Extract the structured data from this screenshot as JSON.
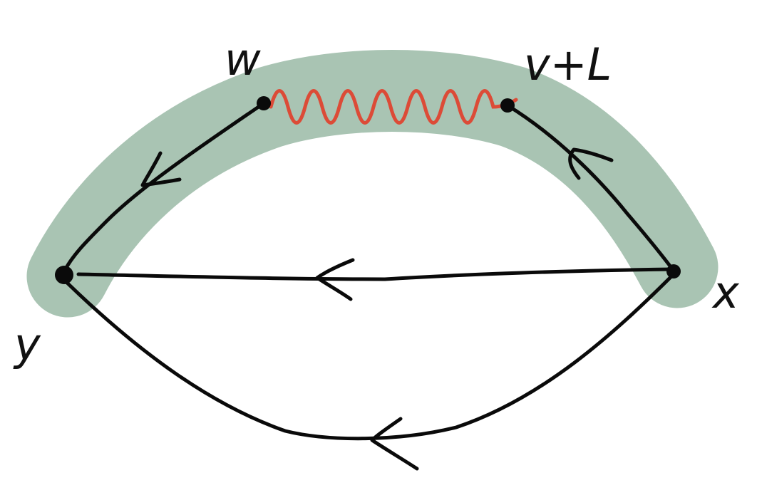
{
  "nodes": [
    {
      "label": "w"
    },
    {
      "label": "v+L"
    },
    {
      "label": "x"
    },
    {
      "label": "y"
    }
  ]
}
